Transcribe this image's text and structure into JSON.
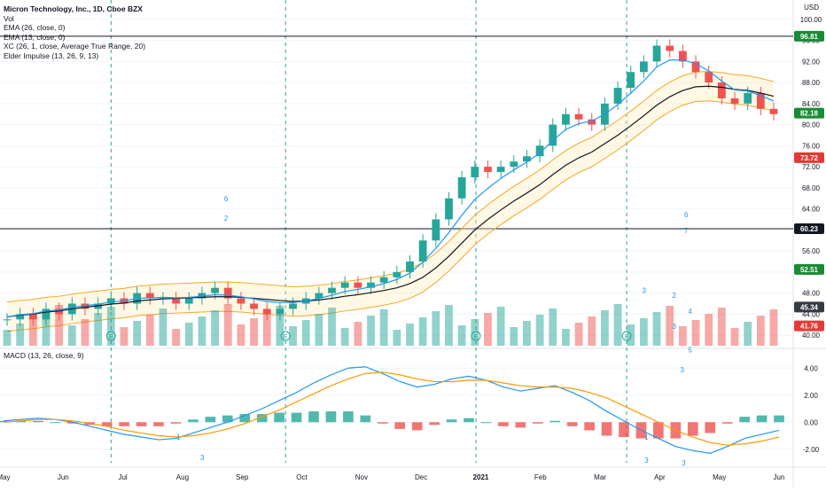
{
  "legend": {
    "title": "Micron Technology, Inc., 1D, Cboe BZX",
    "lines": [
      "Vol",
      "EMA (26, close, 0)",
      "EMA (13, close, 0)",
      "XC (26, 1, close, Average True Range, 20)",
      "Elder Impulse (13, 26, 9, 13)"
    ]
  },
  "macd_legend": "MACD (13, 26, close, 9)",
  "price_axis": {
    "unit": "USD",
    "ticks": [
      "100.00",
      "96.00",
      "92.00",
      "88.00",
      "84.00",
      "80.00",
      "76.00",
      "72.00",
      "68.00",
      "64.00",
      "60.00",
      "56.00",
      "52.00",
      "48.00",
      "44.00",
      "40.00"
    ]
  },
  "macd_axis": {
    "ticks": [
      "4.00",
      "2.00",
      "0.00",
      "-2.00"
    ]
  },
  "time_axis": {
    "labels": [
      "May",
      "Jun",
      "Jul",
      "Aug",
      "Sep",
      "Oct",
      "Nov",
      "Dec",
      "2021",
      "Feb",
      "Mar",
      "Apr",
      "May",
      "Jun"
    ]
  },
  "price_flags": [
    {
      "label": "96.81",
      "color": "#1b8a36"
    },
    {
      "label": "82.18",
      "color": "#1b8a36"
    },
    {
      "label": "73.72",
      "color": "#e53935"
    },
    {
      "label": "60.23",
      "color": "#131722"
    },
    {
      "label": "52.51",
      "color": "#1b8a36"
    },
    {
      "label": "45.34",
      "color": "#363a45"
    },
    {
      "label": "41.76",
      "color": "#e53935"
    }
  ],
  "earnings_marker": "E",
  "signal_numbers": [
    "6",
    "2",
    "6",
    "7",
    "2",
    "3",
    "4",
    "3",
    "5",
    "3"
  ],
  "macd_signal_numbers": [
    "1",
    "3",
    "1",
    "3",
    "3"
  ],
  "colors": {
    "up": "#26a69a",
    "down": "#ef5350",
    "ema_fast": "#2196f3",
    "ema_slow": "#ff9800",
    "channel": "#f5a623"
  },
  "chart_data": {
    "type": "candlestick",
    "title": "Micron Technology, Inc., 1D, Cboe BZX",
    "y_unit": "USD",
    "price_range": [
      38,
      102
    ],
    "series": [
      {
        "name": "Price",
        "values": [
          43,
          44,
          43,
          45,
          44,
          46,
          45,
          46,
          47,
          46,
          48,
          47,
          47,
          46,
          47,
          48,
          49,
          47,
          46,
          45,
          44,
          45,
          46,
          47,
          48,
          49,
          50,
          49,
          50,
          51,
          52,
          54,
          58,
          62,
          66,
          70,
          72,
          71,
          72,
          73,
          74,
          76,
          80,
          82,
          81,
          80,
          84,
          87,
          90,
          92,
          95,
          94,
          92,
          90,
          88,
          85,
          84,
          86,
          83,
          82
        ]
      },
      {
        "name": "EMA (26, close, 0)",
        "values": [
          43.5,
          43.8,
          44.0,
          44.4,
          44.6,
          45.0,
          45.3,
          45.6,
          45.9,
          46.1,
          46.5,
          46.7,
          46.9,
          47.0,
          47.1,
          47.2,
          47.3,
          47.3,
          47.2,
          47.0,
          46.8,
          46.6,
          46.4,
          46.5,
          46.7,
          47.0,
          47.4,
          47.7,
          48.1,
          48.5,
          49.0,
          49.8,
          51.0,
          52.8,
          55.0,
          57.5,
          60.0,
          62.0,
          63.8,
          65.5,
          67.0,
          68.6,
          70.5,
          72.3,
          73.7,
          74.8,
          76.4,
          78.0,
          79.8,
          81.7,
          83.7,
          85.3,
          86.5,
          87.2,
          87.3,
          87.1,
          86.7,
          86.5,
          86.0,
          85.4
        ]
      },
      {
        "name": "EMA (13, close, 0)",
        "values": [
          43.5,
          43.9,
          44.1,
          44.6,
          44.8,
          45.3,
          45.6,
          45.9,
          46.3,
          46.5,
          47.0,
          47.1,
          47.2,
          47.1,
          47.2,
          47.4,
          47.7,
          47.6,
          47.3,
          46.9,
          46.4,
          46.2,
          46.2,
          46.5,
          47.0,
          47.6,
          48.3,
          48.7,
          49.2,
          49.8,
          50.6,
          51.8,
          53.9,
          56.5,
          59.5,
          62.8,
          65.8,
          67.9,
          69.8,
          71.4,
          72.9,
          74.6,
          77.0,
          79.1,
          80.2,
          80.7,
          82.0,
          83.8,
          86.0,
          88.3,
          91.0,
          92.3,
          92.3,
          91.6,
          90.2,
          88.3,
          86.6,
          86.4,
          85.5,
          84.5
        ]
      }
    ],
    "macd": {
      "macd": [
        0.1,
        0.2,
        0.3,
        0.2,
        0.0,
        -0.3,
        -0.6,
        -0.9,
        -1.1,
        -1.3,
        -1.2,
        -0.8,
        -0.4,
        0.0,
        0.5,
        1.0,
        1.6,
        2.2,
        2.9,
        3.5,
        4.0,
        4.1,
        3.6,
        3.0,
        2.6,
        2.8,
        3.2,
        3.4,
        3.1,
        2.6,
        2.3,
        2.5,
        2.7,
        2.2,
        1.6,
        0.8,
        0.1,
        -0.6,
        -1.2,
        -1.8,
        -2.1,
        -2.3,
        -1.8,
        -1.2,
        -0.9,
        -0.6
      ],
      "signal": [
        0.0,
        0.1,
        0.2,
        0.2,
        0.1,
        -0.1,
        -0.3,
        -0.6,
        -0.8,
        -1.0,
        -1.1,
        -1.0,
        -0.8,
        -0.5,
        -0.1,
        0.4,
        0.9,
        1.5,
        2.1,
        2.7,
        3.2,
        3.6,
        3.7,
        3.5,
        3.2,
        3.0,
        3.0,
        3.1,
        3.1,
        2.9,
        2.7,
        2.6,
        2.6,
        2.5,
        2.2,
        1.8,
        1.2,
        0.6,
        0.0,
        -0.6,
        -1.1,
        -1.5,
        -1.7,
        -1.6,
        -1.4,
        -1.1
      ],
      "ylim": [
        -3,
        5
      ]
    }
  }
}
